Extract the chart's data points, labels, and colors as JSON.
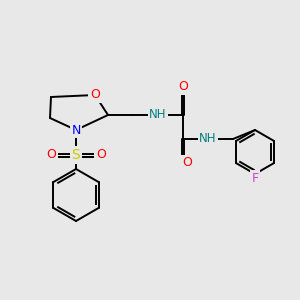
{
  "bg_color": "#e8e8e8",
  "bond_color": "#000000",
  "atom_colors": {
    "O": "#ff0000",
    "N": "#0000ff",
    "S": "#cccc00",
    "F": "#cc44cc",
    "NH": "#008080",
    "C": "#000000"
  },
  "figsize": [
    3.0,
    3.0
  ],
  "dpi": 100,
  "bond_lw": 1.4
}
